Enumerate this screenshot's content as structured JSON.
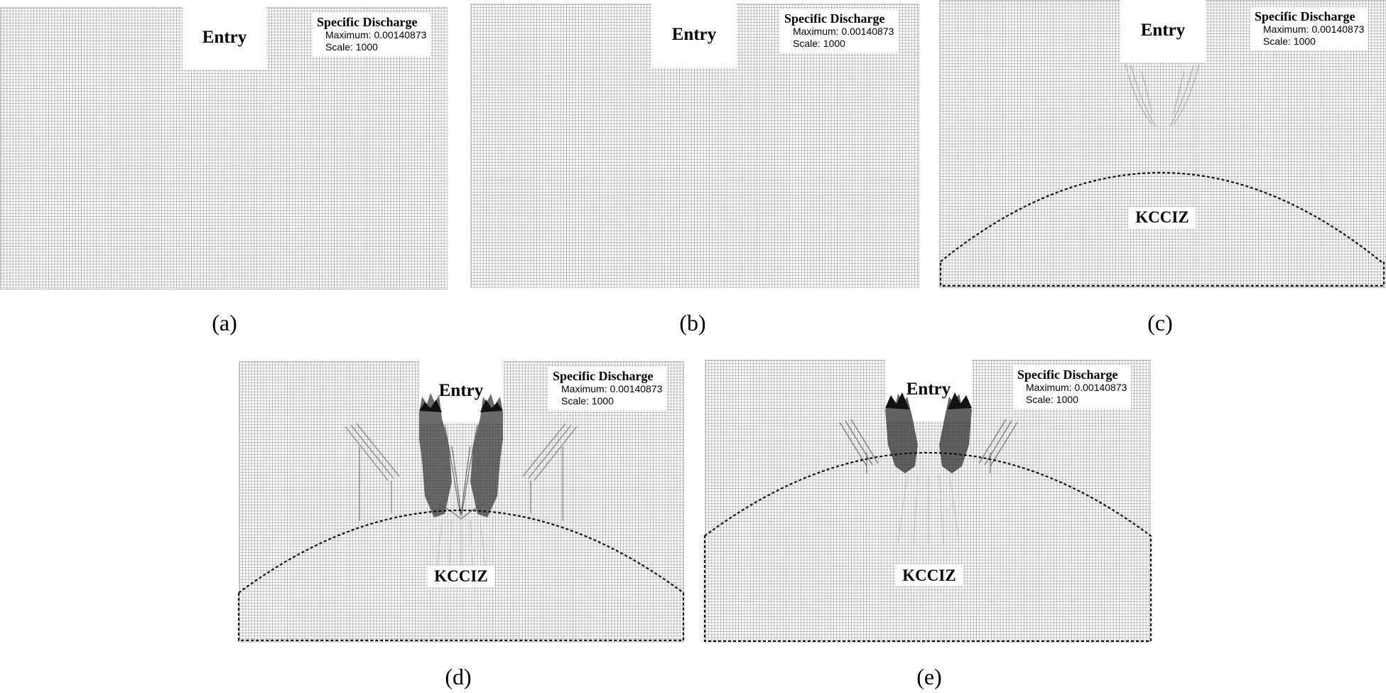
{
  "legend": {
    "title": "Specific Discharge",
    "maximum": "Maximum: 0.00140873",
    "scale": "Scale: 1000"
  },
  "labels": {
    "entry": "Entry",
    "zone": "KCCIZ"
  },
  "captions": {
    "a": "(a)",
    "b": "(b)",
    "c": "(c)",
    "d": "(d)",
    "e": "(e)"
  }
}
